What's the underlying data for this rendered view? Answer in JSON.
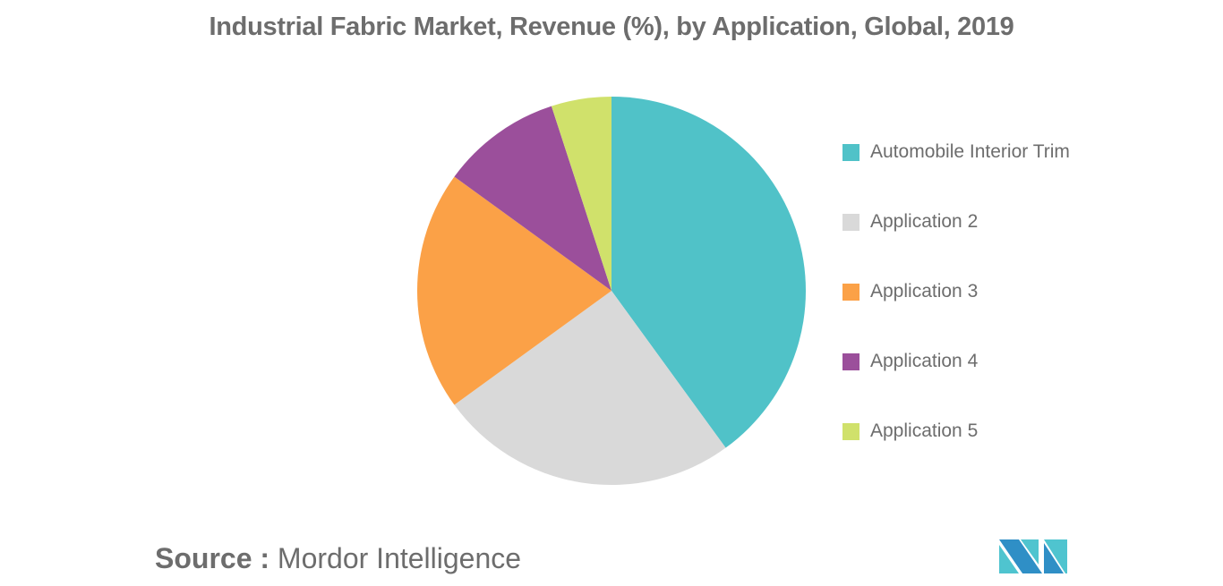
{
  "title": "Industrial Fabric Market, Revenue (%), by Application, Global, 2019",
  "source": {
    "label": "Source :",
    "value": "Mordor Intelligence"
  },
  "legend": [
    {
      "label": "Automobile Interior Trim",
      "color": "#50c2c8"
    },
    {
      "label": "Application 2",
      "color": "#d9d9d9"
    },
    {
      "label": "Application 3",
      "color": "#fba147"
    },
    {
      "label": "Application 4",
      "color": "#9b4f9b"
    },
    {
      "label": "Application 5",
      "color": "#d0e16b"
    }
  ],
  "chart_data": {
    "type": "pie",
    "title": "Industrial Fabric Market, Revenue (%), by Application, Global, 2019",
    "categories": [
      "Automobile Interior Trim",
      "Application 2",
      "Application 3",
      "Application 4",
      "Application 5"
    ],
    "values": [
      40,
      25,
      20,
      10,
      5
    ],
    "colors": [
      "#50c2c8",
      "#d9d9d9",
      "#fba147",
      "#9b4f9b",
      "#d0e16b"
    ],
    "start_angle": "12 o'clock, clockwise",
    "legend_position": "right",
    "unit": "%"
  }
}
